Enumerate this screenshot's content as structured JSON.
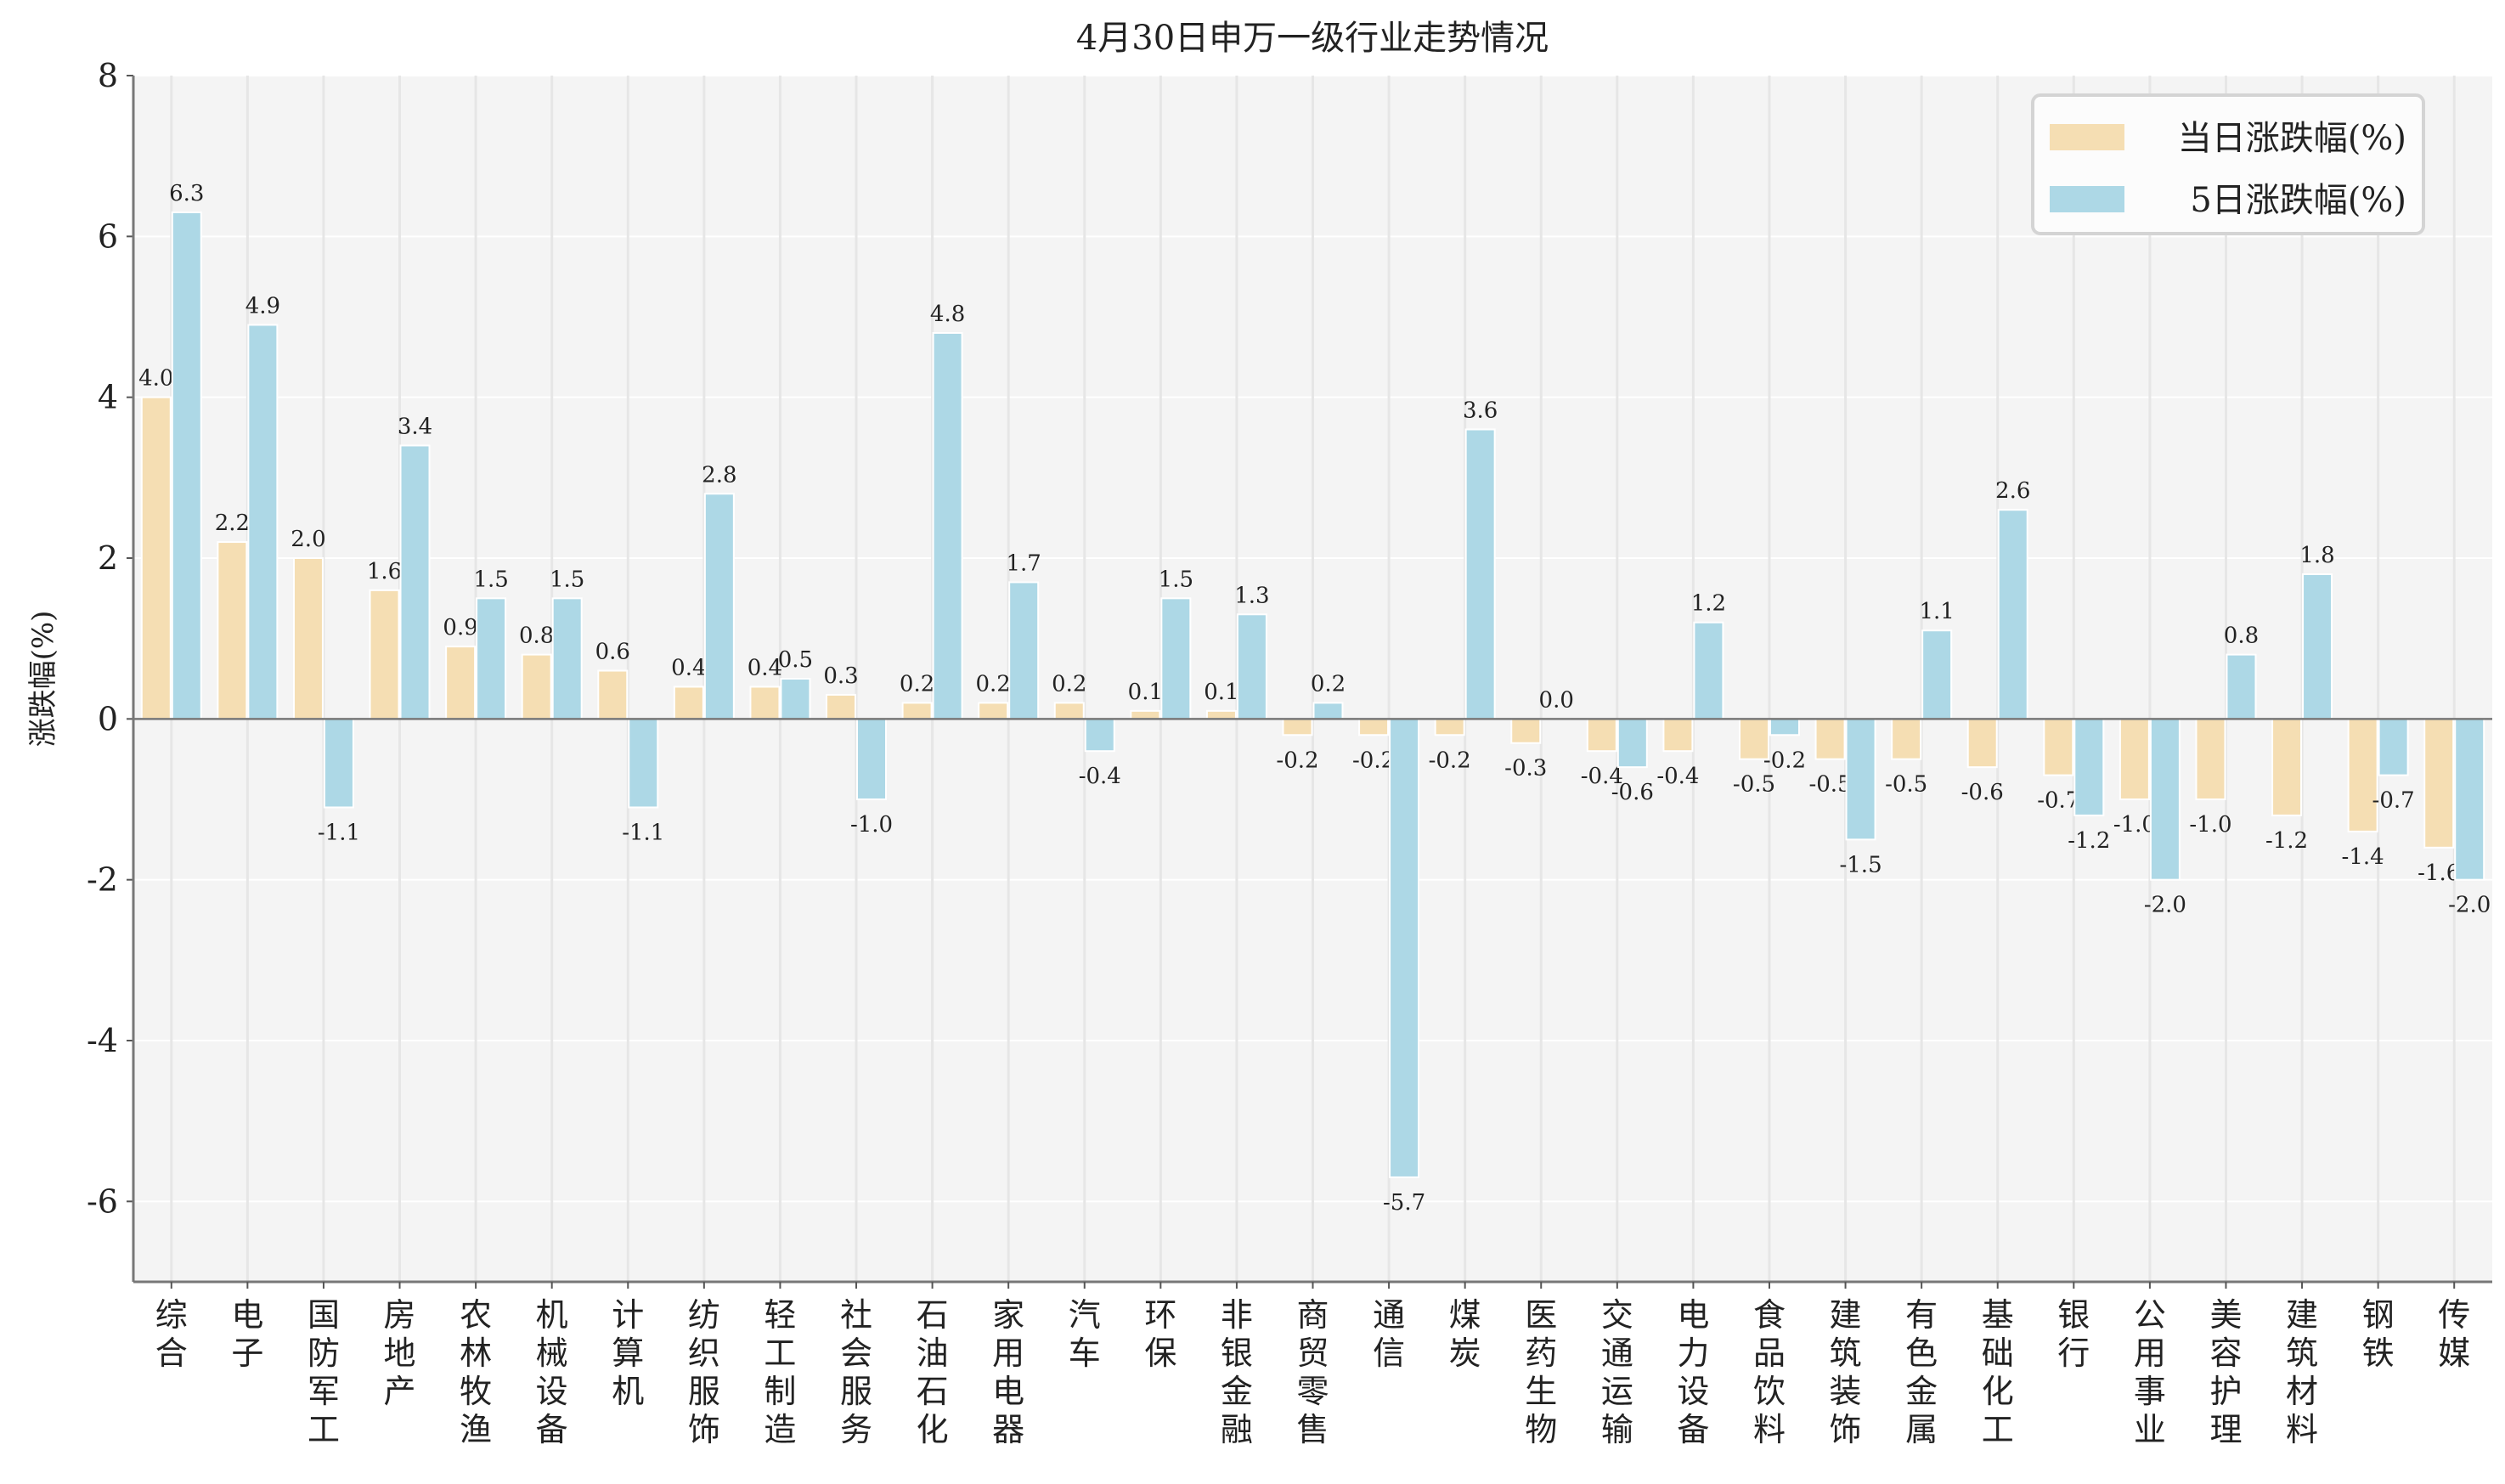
{
  "chart_data": {
    "type": "bar",
    "title": "4月30日申万一级行业走势情况",
    "xlabel": "",
    "ylabel": "涨跌幅(%)",
    "ylim": [
      -7,
      8
    ],
    "yticks": [
      -6,
      -4,
      -2,
      0,
      2,
      4,
      6,
      8
    ],
    "grid": true,
    "legend_position": "top-right",
    "categories": [
      "综合",
      "电子",
      "国防军工",
      "房地产",
      "农林牧渔",
      "机械设备",
      "计算机",
      "纺织服饰",
      "轻工制造",
      "社会服务",
      "石油石化",
      "家用电器",
      "汽车",
      "环保",
      "非银金融",
      "商贸零售",
      "通信",
      "煤炭",
      "医药生物",
      "交通运输",
      "电力设备",
      "食品饮料",
      "建筑装饰",
      "有色金属",
      "基础化工",
      "银行",
      "公用事业",
      "美容护理",
      "建筑材料",
      "钢铁",
      "传媒"
    ],
    "series": [
      {
        "name": "当日涨跌幅(%)",
        "color": "#F5DEB3",
        "values": [
          4.0,
          2.2,
          2.0,
          1.6,
          0.9,
          0.8,
          0.6,
          0.4,
          0.4,
          0.3,
          0.2,
          0.2,
          0.2,
          0.1,
          0.1,
          -0.2,
          -0.2,
          -0.2,
          -0.3,
          -0.4,
          -0.4,
          -0.5,
          -0.5,
          -0.5,
          -0.6,
          -0.7,
          -1.0,
          -1.0,
          -1.2,
          -1.4,
          -1.6
        ]
      },
      {
        "name": "5日涨跌幅(%)",
        "color": "#ADD8E6",
        "values": [
          6.3,
          4.9,
          -1.1,
          3.4,
          1.5,
          1.5,
          -1.1,
          2.8,
          0.5,
          -1.0,
          4.8,
          1.7,
          -0.4,
          1.5,
          1.3,
          0.2,
          -5.7,
          3.6,
          0.0,
          -0.6,
          1.2,
          -0.2,
          -1.5,
          1.1,
          2.6,
          -1.2,
          -2.0,
          0.8,
          1.8,
          -0.7,
          -2.0
        ]
      }
    ]
  }
}
